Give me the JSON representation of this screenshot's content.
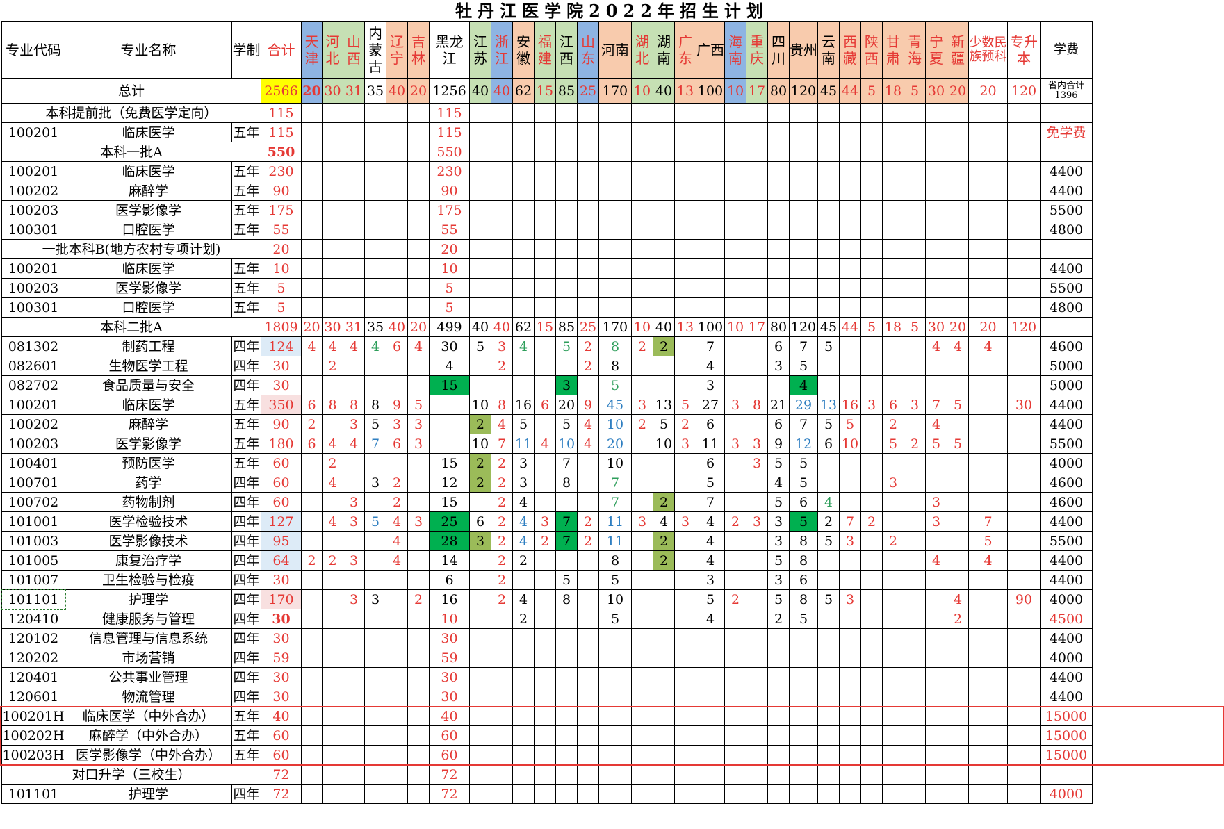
{
  "title": "牡丹江医学院2022年招生计划",
  "colors": {
    "red": "#e53935",
    "black": "#000000",
    "green": "#2e9e5b",
    "blue": "#2f7fc1",
    "bg_yellow": "#ffff00",
    "bg_blue": "#8eb4e3",
    "bg_green": "#c6e0b4",
    "bg_orange": "#f8cbad",
    "bg_lightblue": "#ddebf7",
    "bg_pink": "#f8e0e0",
    "bg_dkgreen": "#00b050",
    "bg_oliv": "#9bbb59"
  },
  "headers": [
    "专业代码",
    "专业名称",
    "学制",
    "合计",
    "天津",
    "河北",
    "山西",
    "内蒙古",
    "辽宁",
    "吉林",
    "黑龙江",
    "江苏",
    "浙江",
    "安徽",
    "福建",
    "江西",
    "山东",
    "河南",
    "湖北",
    "湖南",
    "广东",
    "广西",
    "海南",
    "重庆",
    "四川",
    "贵州",
    "云南",
    "西藏",
    "陕西",
    "甘肃",
    "青海",
    "宁夏",
    "新疆",
    "少数民族预科",
    "专升本",
    "学费"
  ],
  "header_colors": [
    "k",
    "k",
    "k",
    "r",
    "r",
    "r",
    "r",
    "k",
    "r",
    "r",
    "k",
    "k",
    "r",
    "k",
    "r",
    "k",
    "r",
    "k",
    "r",
    "k",
    "r",
    "k",
    "r",
    "r",
    "k",
    "k",
    "k",
    "r",
    "r",
    "r",
    "r",
    "r",
    "r",
    "r",
    "r",
    "k"
  ],
  "header_bg": [
    "",
    "",
    "",
    "",
    "b",
    "g",
    "g",
    "",
    "o",
    "o",
    "",
    "g",
    "b",
    "o",
    "g",
    "g",
    "b",
    "o",
    "g",
    "g",
    "o",
    "o",
    "b",
    "g",
    "o",
    "o",
    "o",
    "o",
    "o",
    "o",
    "o",
    "o",
    "o",
    "",
    "",
    ""
  ],
  "total": {
    "label": "总计",
    "values": [
      "2566",
      "20",
      "30",
      "31",
      "35",
      "40",
      "20",
      "1256",
      "40",
      "40",
      "62",
      "15",
      "85",
      "25",
      "170",
      "10",
      "40",
      "13",
      "100",
      "10",
      "17",
      "80",
      "120",
      "45",
      "44",
      "5",
      "18",
      "5",
      "30",
      "20",
      "20",
      "120"
    ],
    "fee": "省内合计1396"
  },
  "rows": [
    {
      "section": "本科提前批（免费医学定向）",
      "cells": {
        "3": "115",
        "10": "115"
      }
    },
    {
      "code": "100201",
      "name": "临床医学",
      "years": "五年",
      "cells": {
        "3": "115",
        "10": "115"
      },
      "fee": "免学费",
      "fee_c": "r"
    },
    {
      "section": "本科一批A",
      "bold": true,
      "cells": {
        "3": "550",
        "10": "550"
      }
    },
    {
      "code": "100201",
      "name": "临床医学",
      "years": "五年",
      "cells": {
        "3": "230",
        "10": "230"
      },
      "fee": "4400"
    },
    {
      "code": "100202",
      "name": "麻醉学",
      "years": "五年",
      "cells": {
        "3": "90",
        "10": "90"
      },
      "fee": "4400"
    },
    {
      "code": "100203",
      "name": "医学影像学",
      "years": "五年",
      "cells": {
        "3": "175",
        "10": "175"
      },
      "fee": "5500"
    },
    {
      "code": "100301",
      "name": "口腔医学",
      "years": "五年",
      "cells": {
        "3": "55",
        "10": "55"
      },
      "fee": "4800"
    },
    {
      "section": "一批本科B(地方农村专项计划)",
      "cells": {
        "3": "20",
        "10": "20"
      }
    },
    {
      "code": "100201",
      "name": "临床医学",
      "years": "五年",
      "cells": {
        "3": "10",
        "10": "10"
      },
      "fee": "4400"
    },
    {
      "code": "100203",
      "name": "医学影像学",
      "years": "五年",
      "cells": {
        "3": "5",
        "10": "5"
      },
      "fee": "5500"
    },
    {
      "code": "100301",
      "name": "口腔医学",
      "years": "五年",
      "cells": {
        "3": "5",
        "10": "5"
      },
      "fee": "4800"
    },
    {
      "section": "本科二批A",
      "cells": {
        "3": "1809",
        "4": "20",
        "5": "30",
        "6": "31",
        "7": "35",
        "8": "40",
        "9": "20",
        "10": "499",
        "11": "40",
        "12": "40",
        "13": "62",
        "14": "15",
        "15": "85",
        "16": "25",
        "17": "170",
        "18": "10",
        "19": "40",
        "20": "13",
        "21": "100",
        "22": "10",
        "23": "17",
        "24": "80",
        "25": "120",
        "26": "45",
        "27": "44",
        "28": "5",
        "29": "18",
        "30": "5",
        "31": "30",
        "32": "20",
        "33": "20",
        "34": "120"
      },
      "colmap": "sec2"
    },
    {
      "code": "081302",
      "name": "制药工程",
      "years": "四年",
      "cells": {
        "3": "124",
        "4": "4",
        "5": "4",
        "6": "4",
        "7": "4",
        "8": "6",
        "9": "4",
        "10": "30",
        "11": "5",
        "12": "3",
        "13": "4",
        "15": "5",
        "16": "2",
        "17": "8",
        "18": "2",
        "19": "2",
        "21": "7",
        "24": "6",
        "25": "7",
        "26": "5",
        "31": "4",
        "32": "4",
        "33": "4"
      },
      "fee": "4600",
      "style": {
        "3": "lb",
        "7": "gt",
        "13": "gt",
        "15": "gt",
        "17": "gt",
        "19": "ol"
      }
    },
    {
      "code": "082601",
      "name": "生物医学工程",
      "years": "四年",
      "cells": {
        "3": "30",
        "5": "2",
        "10": "4",
        "12": "2",
        "16": "2",
        "17": "8",
        "21": "4",
        "24": "3",
        "25": "5"
      },
      "fee": "5000"
    },
    {
      "code": "082702",
      "name": "食品质量与安全",
      "years": "四年",
      "cells": {
        "3": "30",
        "10": "15",
        "15": "3",
        "17": "5",
        "21": "3",
        "25": "4"
      },
      "fee": "5000",
      "style": {
        "10": "dg",
        "15": "dg",
        "17": "gt",
        "25": "dg"
      }
    },
    {
      "code": "100201",
      "name": "临床医学",
      "years": "五年",
      "cells": {
        "3": "350",
        "4": "6",
        "5": "8",
        "6": "8",
        "7": "8",
        "8": "9",
        "9": "5",
        "11": "10",
        "12": "8",
        "13": "16",
        "14": "6",
        "15": "20",
        "16": "9",
        "17": "45",
        "18": "3",
        "19": "13",
        "20": "5",
        "21": "27",
        "22": "3",
        "23": "8",
        "24": "21",
        "25": "29",
        "26": "13",
        "27": "16",
        "28": "3",
        "29": "6",
        "30": "3",
        "31": "7",
        "32": "5",
        "34": "30"
      },
      "fee": "4400",
      "style": {
        "3": "pk",
        "17": "bt",
        "25": "bt",
        "26": "bt"
      }
    },
    {
      "code": "100202",
      "name": "麻醉学",
      "years": "五年",
      "cells": {
        "3": "90",
        "4": "2",
        "6": "3",
        "7": "5",
        "8": "3",
        "9": "3",
        "11": "2",
        "12": "4",
        "13": "5",
        "15": "5",
        "16": "4",
        "17": "10",
        "18": "2",
        "19": "5",
        "20": "2",
        "21": "6",
        "24": "6",
        "25": "7",
        "26": "5",
        "27": "5",
        "29": "2",
        "31": "4"
      },
      "fee": "4400",
      "style": {
        "11": "ol",
        "17": "bt"
      }
    },
    {
      "code": "100203",
      "name": "医学影像学",
      "years": "五年",
      "cells": {
        "3": "180",
        "4": "6",
        "5": "4",
        "6": "4",
        "7": "7",
        "8": "6",
        "9": "3",
        "11": "10",
        "12": "7",
        "13": "11",
        "14": "4",
        "15": "10",
        "16": "4",
        "17": "20",
        "19": "10",
        "20": "3",
        "21": "11",
        "22": "3",
        "23": "3",
        "24": "9",
        "25": "12",
        "26": "6",
        "27": "10",
        "29": "5",
        "30": "2",
        "31": "5",
        "32": "5"
      },
      "fee": "5500",
      "style": {
        "7": "bt",
        "13": "bt",
        "15": "bt",
        "17": "bt",
        "25": "bt"
      }
    },
    {
      "code": "100401",
      "name": "预防医学",
      "years": "五年",
      "cells": {
        "3": "60",
        "5": "2",
        "10": "15",
        "11": "2",
        "12": "2",
        "13": "3",
        "15": "7",
        "17": "10",
        "21": "6",
        "23": "3",
        "24": "5",
        "25": "5"
      },
      "fee": "4000",
      "style": {
        "11": "ol"
      }
    },
    {
      "code": "100701",
      "name": "药学",
      "years": "四年",
      "cells": {
        "3": "60",
        "5": "4",
        "7": "3",
        "8": "2",
        "10": "12",
        "11": "2",
        "12": "2",
        "13": "3",
        "15": "8",
        "17": "7",
        "21": "5",
        "24": "4",
        "25": "5",
        "29": "3"
      },
      "fee": "4600",
      "style": {
        "11": "ol",
        "17": "gt"
      }
    },
    {
      "code": "100702",
      "name": "药物制剂",
      "years": "四年",
      "cells": {
        "3": "60",
        "6": "3",
        "8": "2",
        "10": "15",
        "12": "2",
        "13": "4",
        "17": "7",
        "19": "2",
        "21": "7",
        "24": "5",
        "25": "6",
        "26": "4",
        "31": "3"
      },
      "fee": "4600",
      "style": {
        "17": "gt",
        "19": "ol",
        "26": "gt"
      }
    },
    {
      "code": "101001",
      "name": "医学检验技术",
      "years": "四年",
      "cells": {
        "3": "127",
        "5": "4",
        "6": "3",
        "7": "5",
        "8": "4",
        "9": "3",
        "10": "25",
        "11": "6",
        "12": "2",
        "13": "4",
        "14": "3",
        "15": "7",
        "16": "2",
        "17": "11",
        "18": "3",
        "19": "4",
        "20": "3",
        "21": "4",
        "22": "2",
        "23": "3",
        "24": "3",
        "25": "5",
        "26": "2",
        "27": "7",
        "28": "2",
        "31": "3",
        "33": "7"
      },
      "fee": "4400",
      "style": {
        "3": "lb",
        "7": "bt",
        "10": "dg",
        "13": "bt",
        "15": "dg",
        "17": "bt",
        "25": "dg"
      }
    },
    {
      "code": "101003",
      "name": "医学影像技术",
      "years": "四年",
      "cells": {
        "3": "95",
        "8": "4",
        "10": "28",
        "11": "3",
        "12": "2",
        "13": "4",
        "14": "2",
        "15": "7",
        "16": "2",
        "17": "11",
        "19": "2",
        "21": "4",
        "24": "3",
        "25": "8",
        "26": "5",
        "27": "3",
        "29": "2",
        "33": "5"
      },
      "fee": "5500",
      "style": {
        "3": "lb",
        "10": "dg",
        "11": "ol",
        "13": "bt",
        "15": "dg",
        "17": "bt",
        "19": "ol"
      }
    },
    {
      "code": "101005",
      "name": "康复治疗学",
      "years": "四年",
      "cells": {
        "3": "64",
        "4": "2",
        "5": "2",
        "6": "3",
        "8": "4",
        "10": "14",
        "12": "2",
        "13": "2",
        "17": "8",
        "19": "2",
        "21": "4",
        "24": "5",
        "25": "8",
        "31": "4",
        "33": "4"
      },
      "fee": "4400",
      "style": {
        "3": "lb",
        "19": "ol"
      }
    },
    {
      "code": "101007",
      "name": "卫生检验与检疫",
      "years": "四年",
      "cells": {
        "3": "30",
        "10": "6",
        "12": "2",
        "15": "5",
        "17": "5",
        "21": "3",
        "24": "3",
        "25": "6"
      },
      "fee": "4400"
    },
    {
      "code": "101101",
      "name": "护理学",
      "years": "四年",
      "cells": {
        "3": "170",
        "6": "3",
        "7": "3",
        "9": "2",
        "10": "16",
        "12": "2",
        "13": "4",
        "15": "8",
        "17": "10",
        "21": "5",
        "22": "2",
        "24": "5",
        "25": "8",
        "26": "5",
        "27": "3",
        "32": "4",
        "34": "90"
      },
      "fee": "4000",
      "style": {
        "3": "pk"
      },
      "dashcode": true
    },
    {
      "code": "120410",
      "name": "健康服务与管理",
      "years": "四年",
      "cells": {
        "3": "30",
        "10": "10",
        "13": "2",
        "17": "5",
        "21": "4",
        "24": "2",
        "25": "5",
        "32": "2"
      },
      "fee": "4500",
      "fee_c": "r",
      "bold3": true
    },
    {
      "code": "120102",
      "name": "信息管理与信息系统",
      "years": "四年",
      "cells": {
        "3": "30",
        "10": "30"
      },
      "fee": "4400"
    },
    {
      "code": "120202",
      "name": "市场营销",
      "years": "四年",
      "cells": {
        "3": "59",
        "10": "59"
      },
      "fee": "4000"
    },
    {
      "code": "120401",
      "name": "公共事业管理",
      "years": "四年",
      "cells": {
        "3": "30",
        "10": "30"
      },
      "fee": "4400"
    },
    {
      "code": "120601",
      "name": "物流管理",
      "years": "四年",
      "cells": {
        "3": "30",
        "10": "30"
      },
      "fee": "4400"
    },
    {
      "code": "100201H",
      "name": "临床医学（中外合办）",
      "years": "五年",
      "cells": {
        "3": "40",
        "10": "40"
      },
      "fee": "15000",
      "fee_c": "r"
    },
    {
      "code": "100202H",
      "name": "麻醉学（中外合办）",
      "years": "五年",
      "cells": {
        "3": "60",
        "10": "60"
      },
      "fee": "15000",
      "fee_c": "r"
    },
    {
      "code": "100203H",
      "name": "医学影像学（中外合办）",
      "years": "五年",
      "cells": {
        "3": "60",
        "10": "60"
      },
      "fee": "15000",
      "fee_c": "r"
    },
    {
      "section": "对口升学（三校生）",
      "cells": {
        "3": "72",
        "10": "72"
      }
    },
    {
      "code": "101101",
      "name": "护理学",
      "years": "四年",
      "cells": {
        "3": "72",
        "10": "72"
      },
      "fee": "4000",
      "fee_c": "r"
    }
  ]
}
